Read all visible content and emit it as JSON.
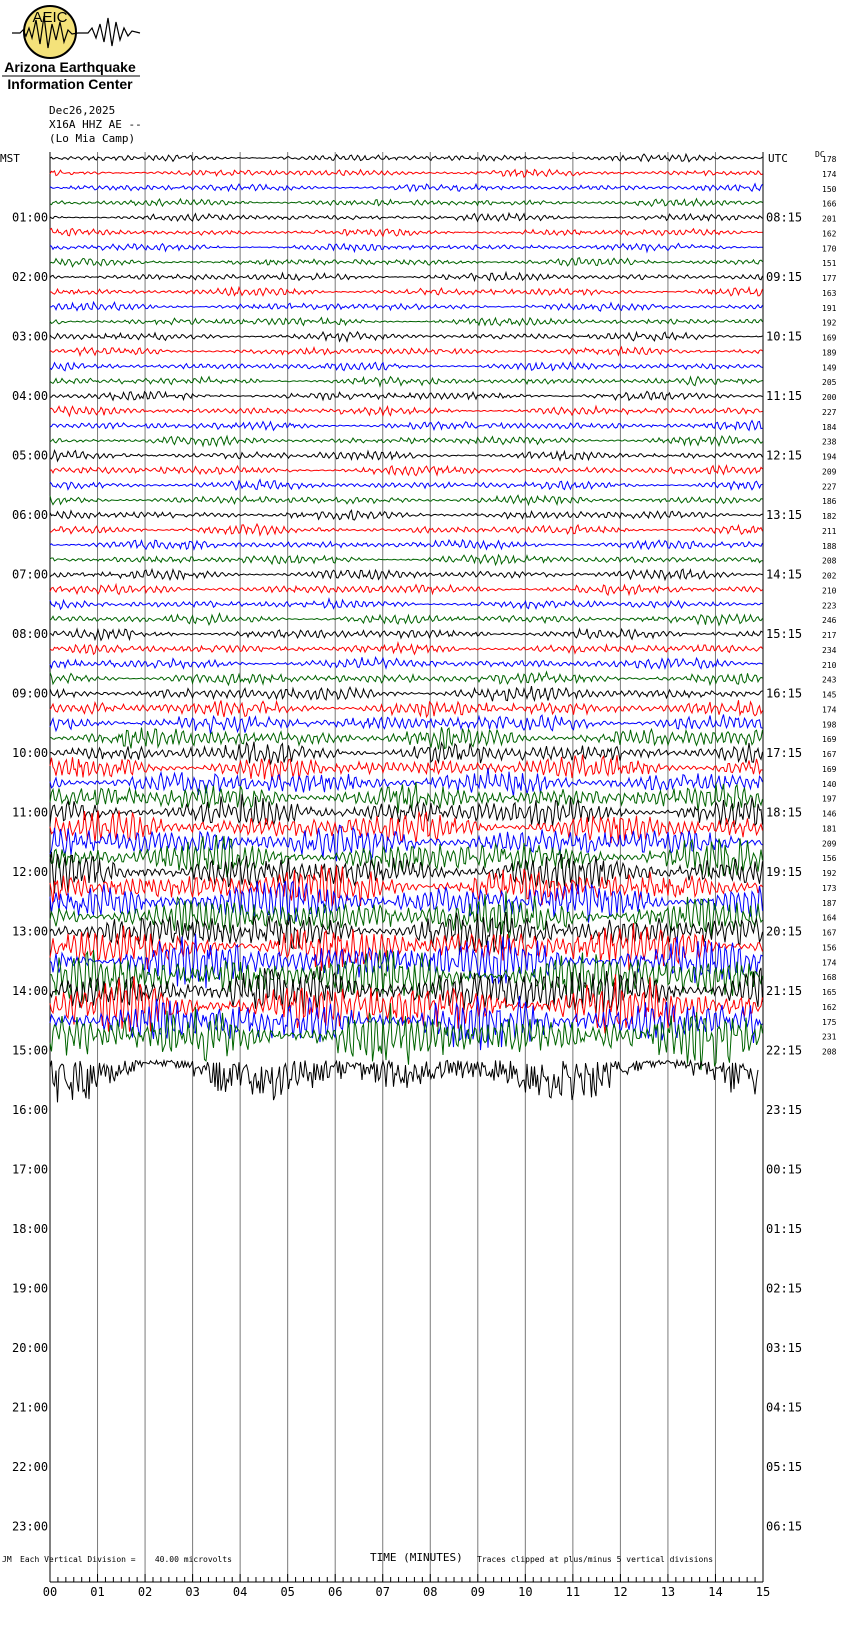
{
  "logo": {
    "acronym": "AEIC",
    "line1": "Arizona Earthquake",
    "line2": "Information Center"
  },
  "header": {
    "date": "Dec26,2025",
    "station": "X16A HHZ AE --",
    "site": "(Lo Mia Camp)"
  },
  "chart_data": {
    "type": "line",
    "title": "",
    "left_timezone": "MST",
    "right_timezone": "UTC",
    "dc_label": "DC",
    "xlabel": "TIME (MINUTES)",
    "xlim": [
      0,
      15
    ],
    "x_ticks": [
      "00",
      "01",
      "02",
      "03",
      "04",
      "05",
      "06",
      "07",
      "08",
      "09",
      "10",
      "11",
      "12",
      "13",
      "14",
      "15"
    ],
    "left_hour_labels": [
      "01:00",
      "02:00",
      "03:00",
      "04:00",
      "05:00",
      "06:00",
      "07:00",
      "08:00",
      "09:00",
      "10:00",
      "11:00",
      "12:00",
      "13:00",
      "14:00",
      "15:00",
      "16:00",
      "17:00",
      "18:00",
      "19:00",
      "20:00",
      "21:00",
      "22:00",
      "23:00"
    ],
    "right_hour_labels": [
      "08:15",
      "09:15",
      "10:15",
      "11:15",
      "12:15",
      "13:15",
      "14:15",
      "15:15",
      "16:15",
      "17:15",
      "18:15",
      "19:15",
      "20:15",
      "21:15",
      "22:15",
      "23:15",
      "00:15",
      "01:15",
      "02:15",
      "03:15",
      "04:15",
      "05:15",
      "06:15"
    ],
    "trace_colors": [
      "#000000",
      "#ff0000",
      "#0000ff",
      "#006400"
    ],
    "traces_recorded": 61,
    "dc_offsets": [
      178,
      174,
      150,
      166,
      201,
      162,
      170,
      151,
      177,
      163,
      191,
      192,
      169,
      189,
      149,
      205,
      200,
      227,
      184,
      238,
      194,
      209,
      227,
      186,
      182,
      211,
      188,
      208,
      202,
      210,
      223,
      246,
      217,
      234,
      210,
      243,
      145,
      174,
      198,
      169,
      167,
      169,
      140,
      197,
      146,
      181,
      209,
      156,
      192,
      173,
      187,
      164,
      167,
      156,
      174,
      168,
      165,
      162,
      175,
      231,
      208
    ],
    "scale_note": "Each Vertical Division =    40.00 microvolts",
    "clip_note": "Traces clipped at plus/minus 5 vertical divisions",
    "corner_mark": "JM"
  }
}
